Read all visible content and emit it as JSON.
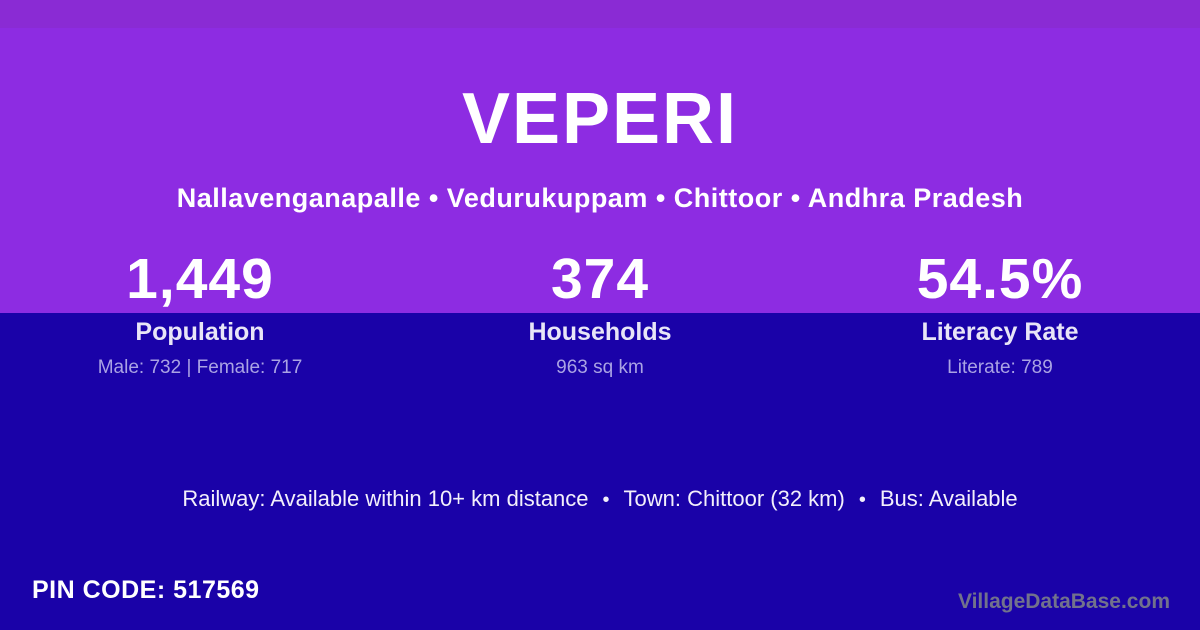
{
  "header": {
    "title": "VEPERI",
    "location": "Nallavenganapalle • Vedurukuppam • Chittoor • Andhra Pradesh"
  },
  "stats": [
    {
      "value": "1,449",
      "label": "Population",
      "detail": "Male: 732 | Female: 717"
    },
    {
      "value": "374",
      "label": "Households",
      "detail": "963 sq km"
    },
    {
      "value": "54.5%",
      "label": "Literacy Rate",
      "detail": "Literate: 789"
    }
  ],
  "transport": {
    "railway": "Railway: Available within 10+ km distance",
    "separator": "•",
    "town": "Town: Chittoor (32 km)",
    "bus": "Bus: Available"
  },
  "footer": {
    "pin_label": "PIN CODE:",
    "pin_value": "517569",
    "watermark": "VillageDataBase.com"
  },
  "colors": {
    "purple_main": "#8d2ce2",
    "purple_top": "#8a2bd4",
    "blue_bg": "#1a02a8",
    "text_white": "#ffffff",
    "text_near_white": "#f3f0fb",
    "text_label": "#e8e5f7",
    "text_muted": "#aaa3e4",
    "watermark_gray": "#72728c"
  }
}
